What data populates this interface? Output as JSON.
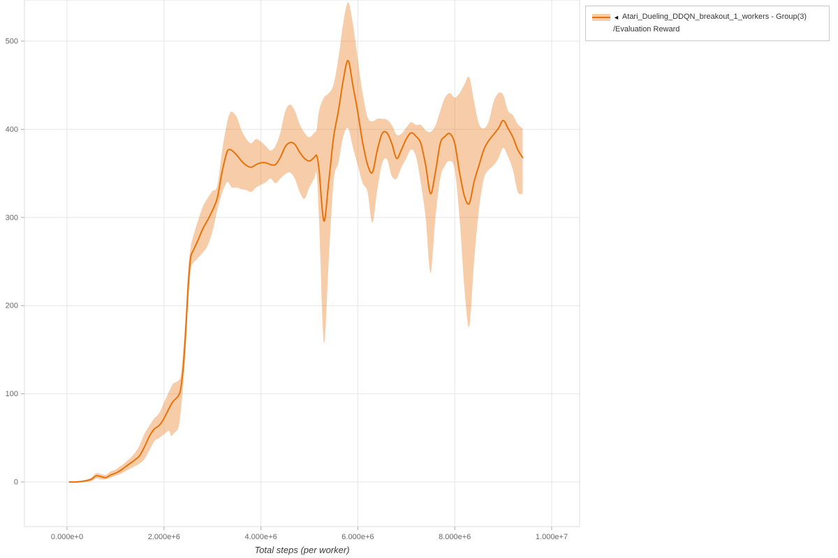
{
  "legend": {
    "marker": "◄",
    "name": "Atari_Dueling_DDQN_breakout_1_workers - Group(3)",
    "metric": "/Evaluation Reward"
  },
  "chart_data": {
    "type": "line",
    "title": "",
    "xlabel": "Total steps (per worker)",
    "ylabel": "",
    "grid": true,
    "legend_position": "outside-top-right",
    "xlim": [
      0,
      10000000
    ],
    "ylim": [
      -50,
      545
    ],
    "x_unit_multiplier": 1000000,
    "x_ticks": [
      {
        "value": 0,
        "label": "0.000e+0"
      },
      {
        "value": 2000000,
        "label": "2.000e+6"
      },
      {
        "value": 4000000,
        "label": "4.000e+6"
      },
      {
        "value": 6000000,
        "label": "6.000e+6"
      },
      {
        "value": 8000000,
        "label": "8.000e+6"
      },
      {
        "value": 10000000,
        "label": "1.000e+7"
      }
    ],
    "y_ticks": [
      {
        "value": 0,
        "label": "0"
      },
      {
        "value": 100,
        "label": "100"
      },
      {
        "value": 200,
        "label": "200"
      },
      {
        "value": 300,
        "label": "300"
      },
      {
        "value": 400,
        "label": "400"
      },
      {
        "value": 500,
        "label": "500"
      }
    ],
    "series": [
      {
        "name": "Atari_Dueling_DDQN_breakout_1_workers - Group(3)",
        "metric": "/Evaluation Reward",
        "color": "#e8710a",
        "band_opacity": 0.35,
        "points_format": [
          "x_millions",
          "mean",
          "lower",
          "upper"
        ],
        "points": [
          [
            0.05,
            0,
            0,
            0
          ],
          [
            0.2,
            0,
            0,
            1
          ],
          [
            0.35,
            1,
            0,
            2
          ],
          [
            0.5,
            3,
            1,
            5
          ],
          [
            0.6,
            7,
            4,
            10
          ],
          [
            0.7,
            6,
            3,
            9
          ],
          [
            0.8,
            5,
            3,
            8
          ],
          [
            0.9,
            8,
            5,
            12
          ],
          [
            1.0,
            10,
            7,
            14
          ],
          [
            1.1,
            13,
            9,
            18
          ],
          [
            1.2,
            17,
            12,
            22
          ],
          [
            1.3,
            21,
            15,
            27
          ],
          [
            1.4,
            25,
            18,
            33
          ],
          [
            1.5,
            30,
            21,
            42
          ],
          [
            1.6,
            40,
            26,
            55
          ],
          [
            1.7,
            52,
            36,
            64
          ],
          [
            1.8,
            60,
            46,
            72
          ],
          [
            1.9,
            64,
            50,
            78
          ],
          [
            2.0,
            72,
            54,
            90
          ],
          [
            2.1,
            83,
            58,
            102
          ],
          [
            2.15,
            88,
            52,
            108
          ],
          [
            2.2,
            92,
            55,
            112
          ],
          [
            2.3,
            98,
            62,
            115
          ],
          [
            2.35,
            107,
            82,
            122
          ],
          [
            2.4,
            132,
            112,
            152
          ],
          [
            2.45,
            172,
            152,
            192
          ],
          [
            2.5,
            222,
            202,
            242
          ],
          [
            2.55,
            254,
            240,
            266
          ],
          [
            2.6,
            262,
            248,
            278
          ],
          [
            2.7,
            274,
            254,
            296
          ],
          [
            2.8,
            287,
            260,
            312
          ],
          [
            2.9,
            297,
            268,
            322
          ],
          [
            3.0,
            308,
            284,
            330
          ],
          [
            3.1,
            322,
            308,
            336
          ],
          [
            3.2,
            352,
            328,
            376
          ],
          [
            3.3,
            374,
            340,
            407
          ],
          [
            3.35,
            377,
            338,
            417
          ],
          [
            3.4,
            376,
            334,
            420
          ],
          [
            3.5,
            371,
            334,
            414
          ],
          [
            3.6,
            364,
            332,
            399
          ],
          [
            3.7,
            359,
            331,
            389
          ],
          [
            3.8,
            357,
            329,
            384
          ],
          [
            3.9,
            360,
            334,
            389
          ],
          [
            4.0,
            362,
            337,
            386
          ],
          [
            4.1,
            362,
            340,
            381
          ],
          [
            4.2,
            360,
            344,
            376
          ],
          [
            4.3,
            360,
            339,
            381
          ],
          [
            4.4,
            368,
            344,
            396
          ],
          [
            4.5,
            380,
            349,
            420
          ],
          [
            4.6,
            385,
            351,
            428
          ],
          [
            4.7,
            383,
            344,
            421
          ],
          [
            4.8,
            374,
            329,
            406
          ],
          [
            4.9,
            367,
            321,
            396
          ],
          [
            5.0,
            364,
            334,
            391
          ],
          [
            5.1,
            368,
            344,
            396
          ],
          [
            5.15,
            370,
            349,
            400
          ],
          [
            5.2,
            354,
            298,
            421
          ],
          [
            5.3,
            296,
            158,
            436
          ],
          [
            5.4,
            341,
            252,
            441
          ],
          [
            5.5,
            391,
            341,
            451
          ],
          [
            5.6,
            421,
            362,
            481
          ],
          [
            5.7,
            456,
            392,
            521
          ],
          [
            5.8,
            478,
            401,
            544
          ],
          [
            5.9,
            449,
            379,
            519
          ],
          [
            6.0,
            419,
            359,
            479
          ],
          [
            6.1,
            385,
            339,
            441
          ],
          [
            6.2,
            360,
            329,
            414
          ],
          [
            6.3,
            351,
            294,
            409
          ],
          [
            6.4,
            376,
            331,
            412
          ],
          [
            6.5,
            395,
            361,
            412
          ],
          [
            6.6,
            396,
            366,
            411
          ],
          [
            6.7,
            384,
            347,
            405
          ],
          [
            6.8,
            367,
            344,
            394
          ],
          [
            6.9,
            377,
            357,
            395
          ],
          [
            7.0,
            389,
            367,
            402
          ],
          [
            7.1,
            396,
            377,
            408
          ],
          [
            7.2,
            392,
            369,
            405
          ],
          [
            7.3,
            384,
            339,
            405
          ],
          [
            7.4,
            359,
            299,
            399
          ],
          [
            7.5,
            327,
            237,
            397
          ],
          [
            7.6,
            351,
            299,
            404
          ],
          [
            7.7,
            384,
            344,
            421
          ],
          [
            7.8,
            392,
            359,
            436
          ],
          [
            7.9,
            395,
            364,
            441
          ],
          [
            8.0,
            384,
            354,
            436
          ],
          [
            8.1,
            351,
            299,
            441
          ],
          [
            8.2,
            324,
            219,
            451
          ],
          [
            8.3,
            316,
            176,
            459
          ],
          [
            8.4,
            341,
            251,
            431
          ],
          [
            8.5,
            359,
            309,
            406
          ],
          [
            8.6,
            377,
            344,
            401
          ],
          [
            8.7,
            387,
            354,
            409
          ],
          [
            8.8,
            394,
            359,
            431
          ],
          [
            8.9,
            401,
            367,
            441
          ],
          [
            9.0,
            410,
            379,
            439
          ],
          [
            9.1,
            401,
            369,
            421
          ],
          [
            9.2,
            391,
            354,
            416
          ],
          [
            9.3,
            377,
            329,
            406
          ],
          [
            9.4,
            368,
            327,
            401
          ]
        ]
      }
    ]
  }
}
